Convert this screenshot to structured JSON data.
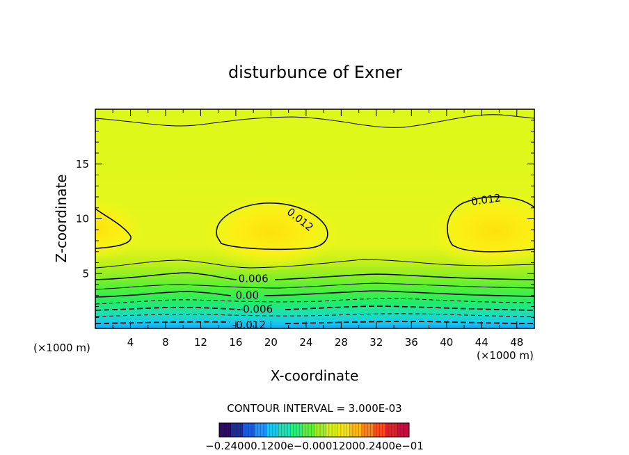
{
  "chart_data": {
    "type": "contour",
    "title": "disturbunce of Exner",
    "xlabel": "X-coordinate",
    "ylabel": "Z-coordinate",
    "x_unit_left": "(×1000 m)",
    "x_unit_right": "(×1000 m)",
    "xlim": [
      0,
      50
    ],
    "ylim": [
      0,
      20
    ],
    "xticks": [
      4,
      8,
      12,
      16,
      20,
      24,
      28,
      32,
      36,
      40,
      44,
      48
    ],
    "yticks": [
      5,
      10,
      15
    ],
    "contour_interval_text": "CONTOUR INTERVAL = 3.000E-03",
    "contour_labels": [
      {
        "text": "0.012",
        "x": 23.3,
        "z": 9.9,
        "angle": 38
      },
      {
        "text": "0.012",
        "x": 44.5,
        "z": 11.7,
        "angle": -8
      },
      {
        "text": "0.006",
        "x": 18,
        "z": 4.5,
        "angle": 0
      },
      {
        "text": "0.00",
        "x": 17.3,
        "z": 3.0,
        "angle": 0
      },
      {
        "text": "-0.006",
        "x": 18.3,
        "z": 1.7,
        "angle": 0
      },
      {
        "text": "-0.012",
        "x": 17.5,
        "z": 0.3,
        "angle": 0
      }
    ],
    "colorbar_labels_text": "−0.24000.1200e−0.00012000.2400e−01",
    "colorbar_colors": [
      "#2a0a5c",
      "#1a2d9a",
      "#1a5ce0",
      "#1e90ff",
      "#16c8f0",
      "#1ee0b4",
      "#28f078",
      "#5cf03c",
      "#a0ec28",
      "#d8f018",
      "#f4e410",
      "#fcb814",
      "#fc8018",
      "#f84a1c",
      "#e81c28",
      "#c01040"
    ]
  }
}
